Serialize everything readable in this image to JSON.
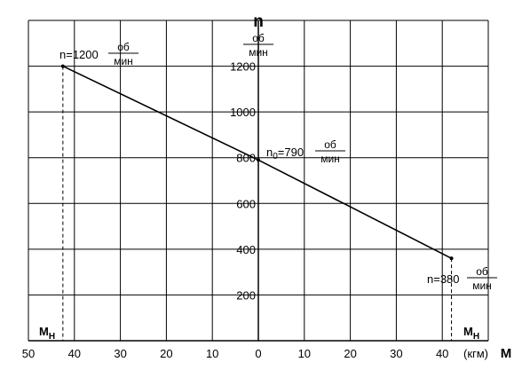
{
  "chart_data": {
    "type": "line",
    "ylabel": "n",
    "yunit": {
      "num": "об",
      "den": "мин"
    },
    "xlabel": "М",
    "xunit": "(кгм)",
    "x_ticks": [
      "50",
      "40",
      "30",
      "20",
      "10",
      "0",
      "10",
      "20",
      "30",
      "40"
    ],
    "y_ticks": [
      "200",
      "400",
      "600",
      "800",
      "1000",
      "1200"
    ],
    "xlim": [
      -50,
      42
    ],
    "ylim": [
      0,
      1350
    ],
    "grid": true,
    "series": [
      {
        "x": [
          -42.5,
          0,
          42
        ],
        "y": [
          1200,
          790,
          360
        ]
      }
    ],
    "annotations": {
      "left": {
        "prefix": "n=1200",
        "num": "об",
        "den": "мин"
      },
      "mid": {
        "n": "n",
        "sub": "0",
        "rest": "=790",
        "num": "об",
        "den": "мин"
      },
      "right": {
        "prefix": "n=380",
        "num": "об",
        "den": "мин"
      }
    },
    "mh_label": {
      "main": "М",
      "sub": "Н"
    }
  }
}
